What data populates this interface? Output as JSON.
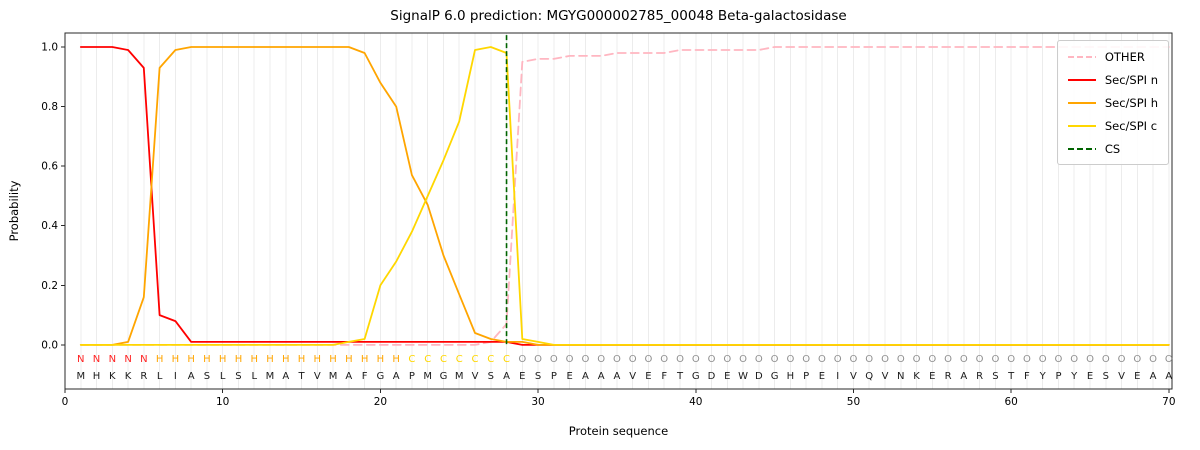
{
  "chart_data": {
    "type": "line",
    "title": "SignalP 6.0 prediction: MGYG000002785_00048 Beta-galactosidase",
    "xlabel": "Protein sequence",
    "ylabel": "Probability",
    "xlim": [
      0,
      70.2
    ],
    "ylim": [
      -0.148,
      1.047
    ],
    "x_ticks": [
      0,
      10,
      20,
      30,
      40,
      50,
      60,
      70
    ],
    "y_ticks": [
      0.0,
      0.2,
      0.4,
      0.6,
      0.8,
      1.0
    ],
    "grid": "vertical-per-residue",
    "gridline_color": "#ececec",
    "legend_position": "upper right",
    "x_start": 1,
    "sequence": "MHKKRLIASLSLMATVMAFGAPMGMVSAESPEAAAVEFTGDEWDGHPEIVQVNKERARSTFYPYESVEAA",
    "regions": "NNNNNHHHHHHHHHHHHHHHHCCCCCCCOOOOOOOOOOOOOOOOOOOOOOOOOOOOOOOOOOOOOOOOOO",
    "region_colors": {
      "N": "#ff2222",
      "H": "#ffa500",
      "C": "#ffd700",
      "O": "#909090"
    },
    "series": [
      {
        "name": "OTHER",
        "color": "#ffb6c1",
        "dash": true,
        "values": [
          0,
          0,
          0,
          0,
          0,
          0,
          0,
          0,
          0,
          0,
          0,
          0,
          0,
          0,
          0,
          0,
          0,
          0,
          0,
          0,
          0,
          0,
          0,
          0,
          0,
          0,
          0.01,
          0.07,
          0.95,
          0.96,
          0.96,
          0.97,
          0.97,
          0.97,
          0.98,
          0.98,
          0.98,
          0.98,
          0.99,
          0.99,
          0.99,
          0.99,
          0.99,
          0.99,
          1,
          1,
          1,
          1,
          1,
          1,
          1,
          1,
          1,
          1,
          1,
          1,
          1,
          1,
          1,
          1,
          1,
          1,
          1,
          1,
          1,
          1,
          1,
          1,
          1,
          1
        ]
      },
      {
        "name": "Sec/SPI n",
        "color": "#ff0000",
        "dash": false,
        "values": [
          1,
          1,
          1,
          0.99,
          0.93,
          0.1,
          0.08,
          0.01,
          0.01,
          0.01,
          0.01,
          0.01,
          0.01,
          0.01,
          0.01,
          0.01,
          0.01,
          0.01,
          0.01,
          0.01,
          0.01,
          0.01,
          0.01,
          0.01,
          0.01,
          0.01,
          0.01,
          0.01,
          0,
          0,
          0,
          0,
          0,
          0,
          0,
          0,
          0,
          0,
          0,
          0,
          0,
          0,
          0,
          0,
          0,
          0,
          0,
          0,
          0,
          0,
          0,
          0,
          0,
          0,
          0,
          0,
          0,
          0,
          0,
          0,
          0,
          0,
          0,
          0,
          0,
          0,
          0,
          0,
          0,
          0
        ]
      },
      {
        "name": "Sec/SPI h",
        "color": "#ffa500",
        "dash": false,
        "values": [
          0,
          0,
          0,
          0.01,
          0.16,
          0.93,
          0.99,
          1,
          1,
          1,
          1,
          1,
          1,
          1,
          1,
          1,
          1,
          1,
          0.98,
          0.88,
          0.8,
          0.57,
          0.47,
          0.3,
          0.17,
          0.04,
          0.02,
          0.01,
          0.01,
          0,
          0,
          0,
          0,
          0,
          0,
          0,
          0,
          0,
          0,
          0,
          0,
          0,
          0,
          0,
          0,
          0,
          0,
          0,
          0,
          0,
          0,
          0,
          0,
          0,
          0,
          0,
          0,
          0,
          0,
          0,
          0,
          0,
          0,
          0,
          0,
          0,
          0,
          0,
          0,
          0
        ]
      },
      {
        "name": "Sec/SPI c",
        "color": "#ffd700",
        "dash": false,
        "values": [
          0,
          0,
          0,
          0,
          0,
          0,
          0,
          0,
          0,
          0,
          0,
          0,
          0,
          0,
          0,
          0,
          0,
          0.01,
          0.02,
          0.2,
          0.28,
          0.38,
          0.5,
          0.62,
          0.75,
          0.99,
          1,
          0.98,
          0.02,
          0.01,
          0,
          0,
          0,
          0,
          0,
          0,
          0,
          0,
          0,
          0,
          0,
          0,
          0,
          0,
          0,
          0,
          0,
          0,
          0,
          0,
          0,
          0,
          0,
          0,
          0,
          0,
          0,
          0,
          0,
          0,
          0,
          0,
          0,
          0,
          0,
          0,
          0,
          0,
          0,
          0
        ]
      }
    ],
    "cs_line": {
      "name": "CS",
      "x": 28,
      "color": "#006400",
      "dash": true
    }
  }
}
